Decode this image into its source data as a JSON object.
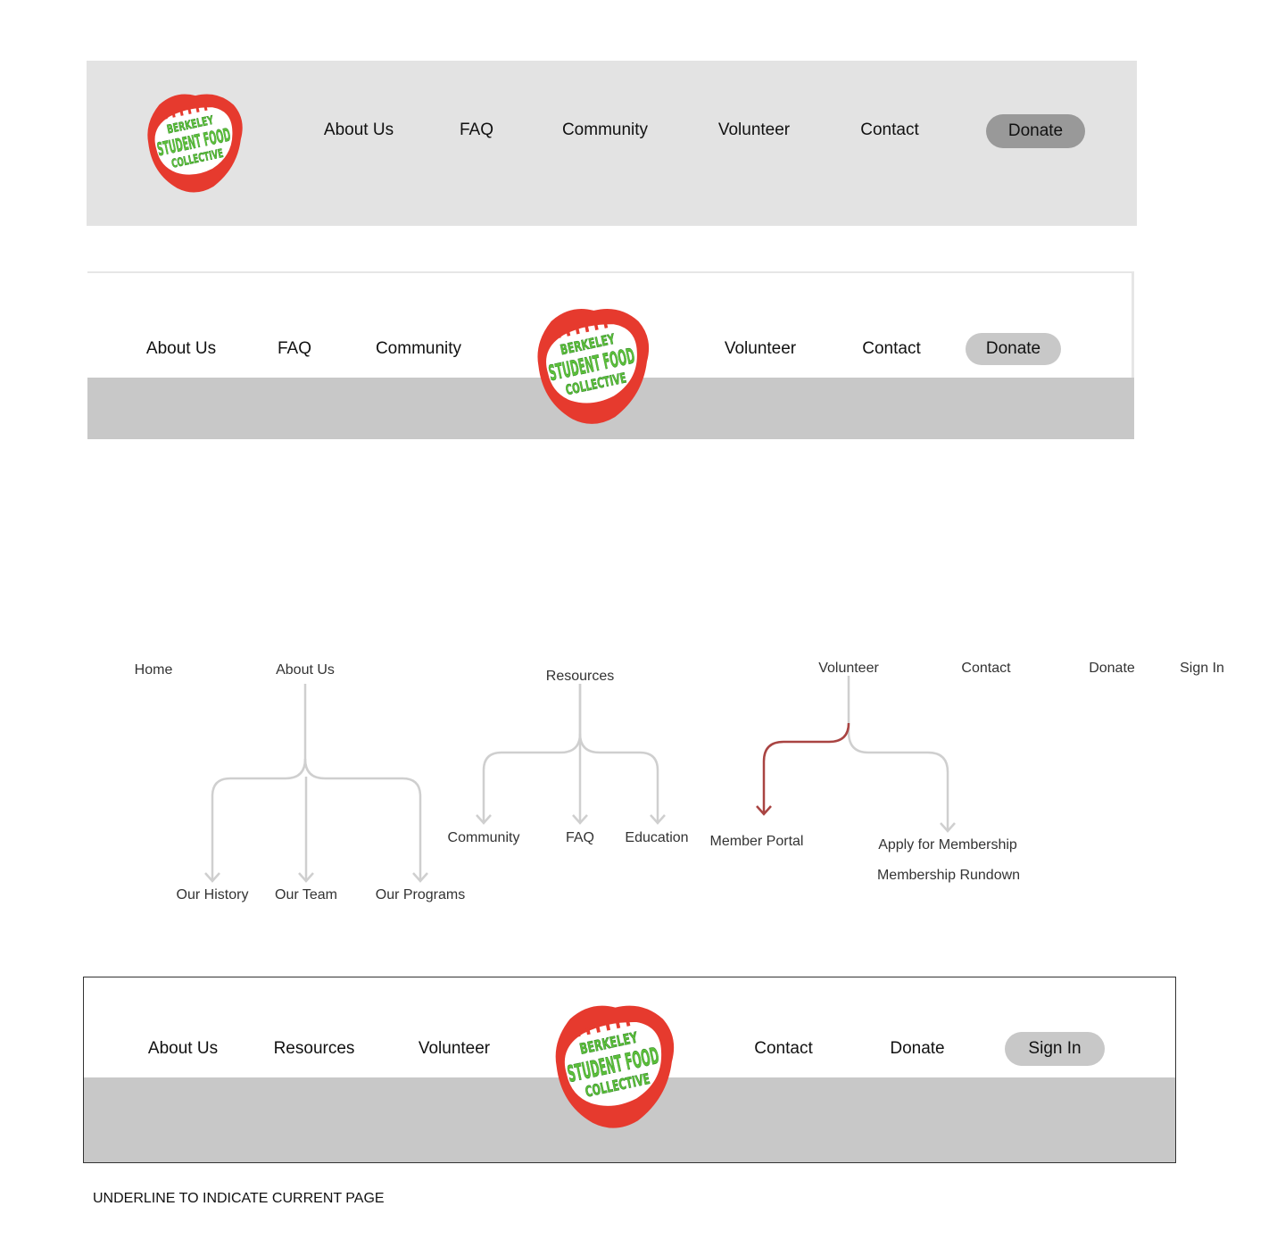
{
  "logo": {
    "lines": [
      "BERKELEY",
      "STUDENT FOOD",
      "COLLECTIVE"
    ]
  },
  "nav1": {
    "links": [
      "About Us",
      "FAQ",
      "Community",
      "Volunteer",
      "Contact"
    ],
    "button": "Donate"
  },
  "nav2": {
    "left": [
      "About Us",
      "FAQ",
      "Community"
    ],
    "right": [
      "Volunteer",
      "Contact"
    ],
    "button": "Donate"
  },
  "sitemap": {
    "top": [
      "Home",
      "About Us",
      "Resources",
      "Volunteer",
      "Contact",
      "Donate",
      "Sign In"
    ],
    "about_children": [
      "Our History",
      "Our Team",
      "Our Programs"
    ],
    "resources_children": [
      "Community",
      "FAQ",
      "Education"
    ],
    "volunteer_children": [
      "Member Portal",
      "Apply for Membership",
      "Membership Rundown"
    ]
  },
  "nav3": {
    "left": [
      "About Us",
      "Resources",
      "Volunteer"
    ],
    "right": [
      "Contact",
      "Donate"
    ],
    "button": "Sign In"
  },
  "note": "UNDERLINE TO INDICATE CURRENT PAGE"
}
